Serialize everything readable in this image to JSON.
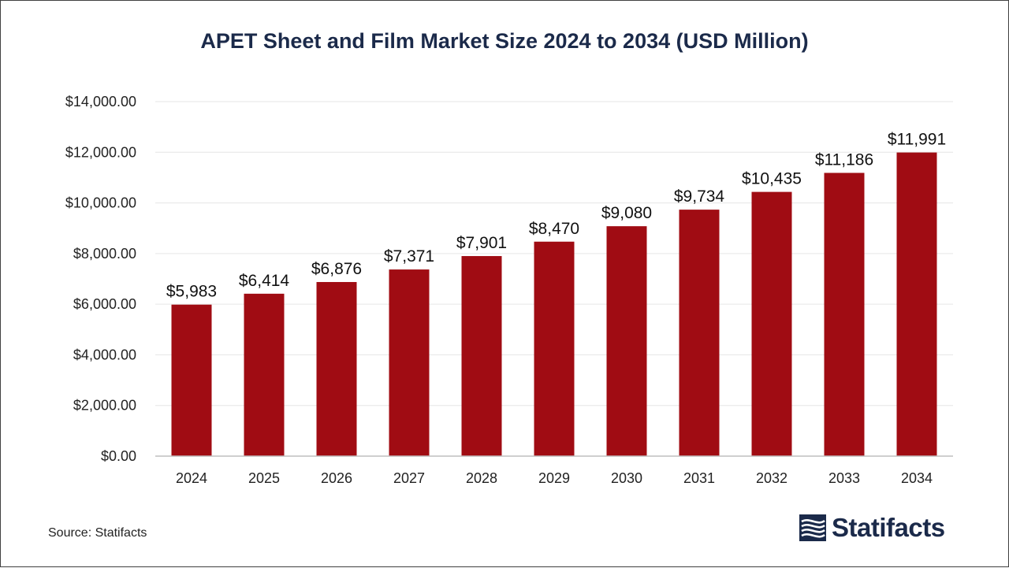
{
  "chart_data": {
    "type": "bar",
    "title": "APET Sheet and Film Market Size 2024 to 2034 (USD Million)",
    "categories": [
      "2024",
      "2025",
      "2026",
      "2027",
      "2028",
      "2029",
      "2030",
      "2031",
      "2032",
      "2033",
      "2034"
    ],
    "values": [
      5983,
      6414,
      6876,
      7371,
      7901,
      8470,
      9080,
      9734,
      10435,
      11186,
      11991
    ],
    "data_labels": [
      "$5,983",
      "$6,414",
      "$6,876",
      "$7,371",
      "$7,901",
      "$8,470",
      "$9,080",
      "$9,734",
      "$10,435",
      "$11,186",
      "$11,991"
    ],
    "yticks": [
      0,
      2000,
      4000,
      6000,
      8000,
      10000,
      12000,
      14000
    ],
    "ytick_labels": [
      "$0.00",
      "$2,000.00",
      "$4,000.00",
      "$6,000.00",
      "$8,000.00",
      "$10,000.00",
      "$12,000.00",
      "$14,000.00"
    ],
    "ylim": [
      0,
      14000
    ],
    "xlabel": "",
    "ylabel": "",
    "grid": true,
    "bar_color": "#a00c13",
    "grid_color": "#e6e6e6",
    "axis_color": "#bfbfbf"
  },
  "footer": {
    "source": "Source: Statifacts",
    "brand": "Statifacts",
    "brand_icon": "statifacts-logo-icon",
    "brand_color": "#1b2a4a"
  }
}
